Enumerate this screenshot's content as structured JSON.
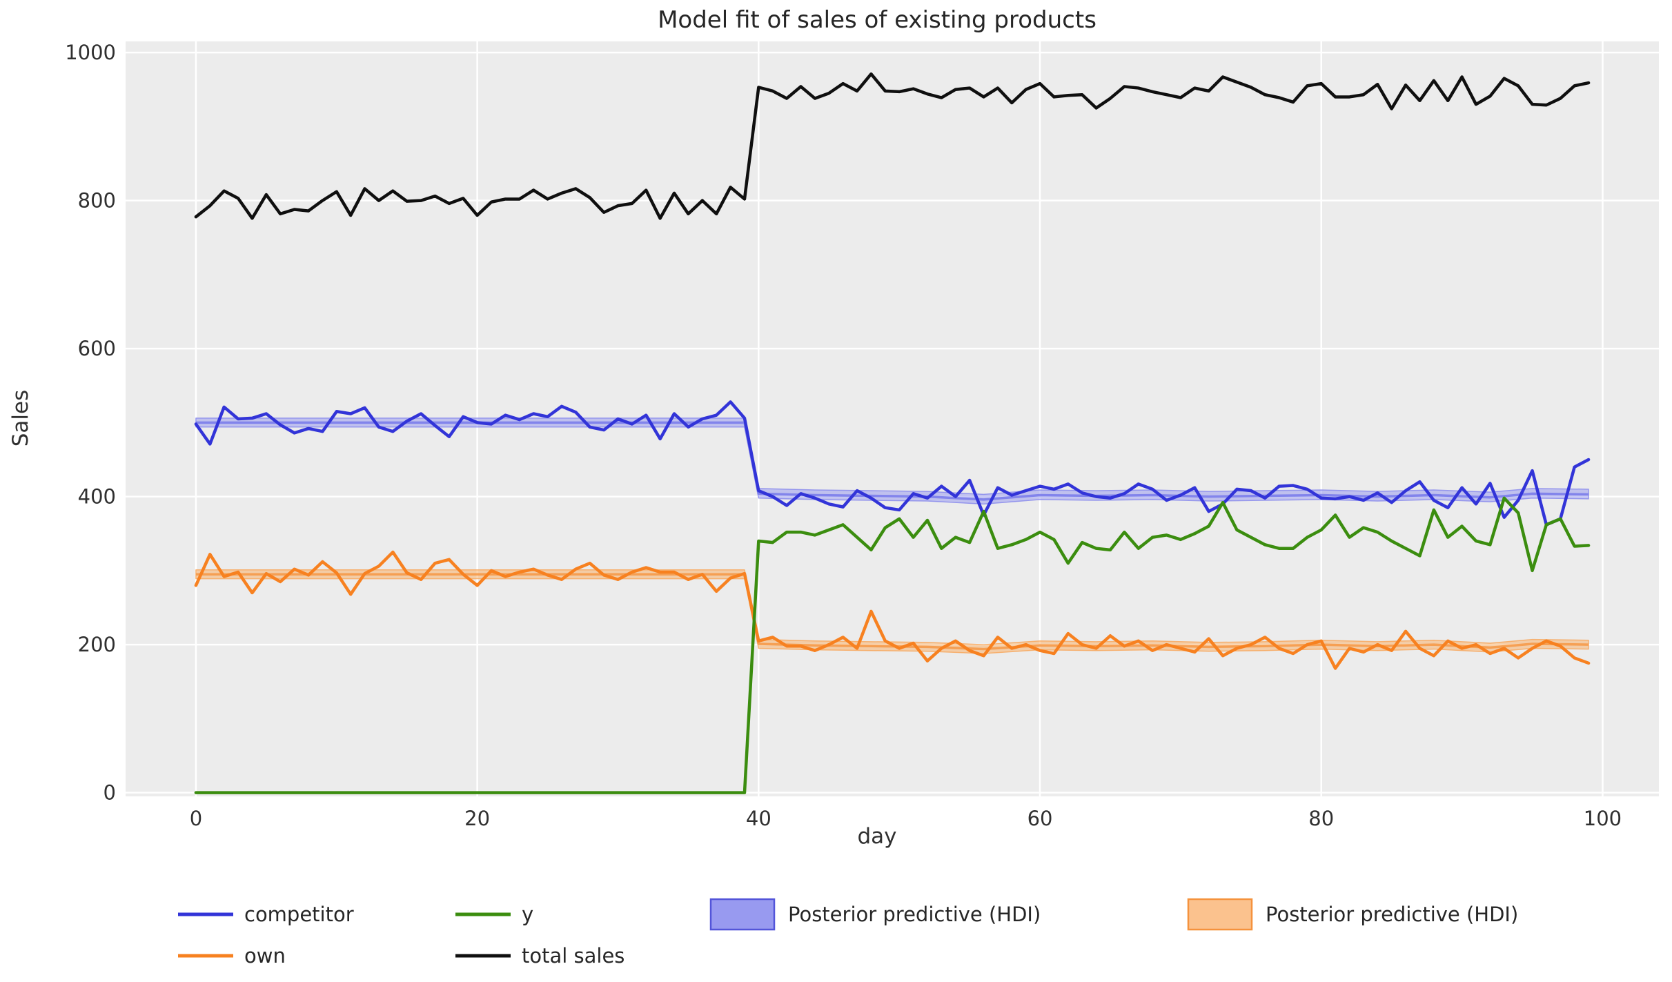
{
  "colors": {
    "competitor": "#3234d8",
    "own": "#f78120",
    "y": "#3b8d0f",
    "total_sales": "#0f0f0f",
    "hdi_blue_fill": "#9b9df0",
    "hdi_blue_mean": "#7b7dea",
    "hdi_blue_edge": "#8486ec",
    "hdi_orange_fill": "#f9b26e",
    "hdi_orange_mean": "#f59a4a",
    "hdi_orange_edge": "#f7a559",
    "patch_blue_fill": "#989af0",
    "patch_blue_edge": "#5355d9",
    "patch_orange_fill": "#fbc28e",
    "patch_orange_edge": "#f5923d",
    "plot_bg": "#ececec",
    "grid": "#ffffff",
    "text": "#303030"
  },
  "legend": {
    "entries": [
      {
        "label": "competitor",
        "swatch": "line",
        "color_key": "competitor"
      },
      {
        "label": "own",
        "swatch": "line",
        "color_key": "own"
      },
      {
        "label": "y",
        "swatch": "line",
        "color_key": "y"
      },
      {
        "label": "total sales",
        "swatch": "line",
        "color_key": "total_sales"
      },
      {
        "label": "Posterior predictive (HDI)",
        "swatch": "patch",
        "fill_key": "patch_blue_fill",
        "edge_key": "patch_blue_edge"
      },
      {
        "label": "Posterior predictive (HDI)",
        "swatch": "patch",
        "fill_key": "patch_orange_fill",
        "edge_key": "patch_orange_edge"
      }
    ]
  },
  "chart_data": {
    "type": "line",
    "title": "Model fit of sales of existing products",
    "xlabel": "day",
    "ylabel": "Sales",
    "xlim": [
      -5,
      104
    ],
    "ylim": [
      -5,
      1015
    ],
    "xticks": [
      0,
      20,
      40,
      60,
      80,
      100
    ],
    "yticks": [
      0,
      200,
      400,
      600,
      800,
      1000
    ],
    "grid": true,
    "legend_position": "below",
    "days": [
      0,
      1,
      2,
      3,
      4,
      5,
      6,
      7,
      8,
      9,
      10,
      11,
      12,
      13,
      14,
      15,
      16,
      17,
      18,
      19,
      20,
      21,
      22,
      23,
      24,
      25,
      26,
      27,
      28,
      29,
      30,
      31,
      32,
      33,
      34,
      35,
      36,
      37,
      38,
      39,
      40,
      41,
      42,
      43,
      44,
      45,
      46,
      47,
      48,
      49,
      50,
      51,
      52,
      53,
      54,
      55,
      56,
      57,
      58,
      59,
      60,
      61,
      62,
      63,
      64,
      65,
      66,
      67,
      68,
      69,
      70,
      71,
      72,
      73,
      74,
      75,
      76,
      77,
      78,
      79,
      80,
      81,
      82,
      83,
      84,
      85,
      86,
      87,
      88,
      89,
      90,
      91,
      92,
      93,
      94,
      95,
      96,
      97,
      98,
      99
    ],
    "series": [
      {
        "name": "competitor",
        "color_key": "competitor",
        "values": [
          498,
          471,
          521,
          505,
          506,
          512,
          497,
          486,
          492,
          488,
          515,
          512,
          520,
          494,
          488,
          502,
          512,
          496,
          481,
          508,
          500,
          498,
          510,
          504,
          512,
          508,
          522,
          514,
          494,
          490,
          505,
          498,
          510,
          478,
          512,
          494,
          505,
          510,
          528,
          506,
          408,
          400,
          388,
          404,
          398,
          390,
          386,
          408,
          398,
          385,
          382,
          404,
          398,
          414,
          400,
          422,
          375,
          412,
          402,
          408,
          414,
          410,
          417,
          405,
          400,
          398,
          404,
          417,
          410,
          395,
          402,
          412,
          380,
          390,
          410,
          408,
          398,
          414,
          415,
          410,
          398,
          397,
          400,
          395,
          405,
          392,
          408,
          420,
          395,
          385,
          412,
          390,
          418,
          372,
          395,
          435,
          362,
          370,
          440,
          450
        ]
      },
      {
        "name": "own",
        "color_key": "own",
        "values": [
          280,
          322,
          292,
          298,
          270,
          296,
          285,
          302,
          294,
          312,
          297,
          268,
          296,
          306,
          325,
          297,
          288,
          310,
          315,
          295,
          280,
          300,
          292,
          298,
          302,
          294,
          288,
          302,
          310,
          294,
          288,
          298,
          304,
          298,
          298,
          288,
          295,
          272,
          290,
          296,
          205,
          210,
          198,
          198,
          192,
          200,
          210,
          195,
          245,
          205,
          195,
          202,
          178,
          195,
          205,
          192,
          185,
          210,
          195,
          200,
          192,
          188,
          215,
          200,
          195,
          212,
          198,
          205,
          192,
          200,
          195,
          190,
          208,
          185,
          195,
          200,
          210,
          195,
          188,
          200,
          205,
          168,
          195,
          190,
          200,
          192,
          218,
          195,
          185,
          205,
          195,
          200,
          188,
          195,
          182,
          195,
          205,
          198,
          182,
          175
        ]
      },
      {
        "name": "y",
        "color_key": "y",
        "values": [
          0,
          0,
          0,
          0,
          0,
          0,
          0,
          0,
          0,
          0,
          0,
          0,
          0,
          0,
          0,
          0,
          0,
          0,
          0,
          0,
          0,
          0,
          0,
          0,
          0,
          0,
          0,
          0,
          0,
          0,
          0,
          0,
          0,
          0,
          0,
          0,
          0,
          0,
          0,
          0,
          340,
          338,
          352,
          352,
          348,
          355,
          362,
          345,
          328,
          358,
          370,
          345,
          368,
          330,
          345,
          338,
          380,
          330,
          335,
          342,
          352,
          342,
          310,
          338,
          330,
          328,
          352,
          330,
          345,
          348,
          342,
          350,
          360,
          392,
          355,
          345,
          335,
          330,
          330,
          345,
          355,
          375,
          345,
          358,
          352,
          340,
          330,
          320,
          382,
          345,
          360,
          340,
          335,
          398,
          378,
          300,
          362,
          370,
          333,
          334
        ]
      },
      {
        "name": "total sales",
        "color_key": "total_sales",
        "values": [
          778,
          793,
          813,
          803,
          776,
          808,
          782,
          788,
          786,
          800,
          812,
          780,
          816,
          800,
          813,
          799,
          800,
          806,
          796,
          803,
          780,
          798,
          802,
          802,
          814,
          802,
          810,
          816,
          804,
          784,
          793,
          796,
          814,
          776,
          810,
          782,
          800,
          782,
          818,
          802,
          953,
          948,
          938,
          954,
          938,
          945,
          958,
          948,
          971,
          948,
          947,
          951,
          944,
          939,
          950,
          952,
          940,
          952,
          932,
          950,
          958,
          940,
          942,
          943,
          925,
          938,
          954,
          952,
          947,
          943,
          939,
          952,
          948,
          967,
          960,
          953,
          943,
          939,
          933,
          955,
          958,
          940,
          940,
          943,
          957,
          924,
          956,
          935,
          962,
          935,
          967,
          930,
          941,
          965,
          955,
          930,
          929,
          938,
          955,
          959
        ]
      }
    ],
    "hdi_bands": [
      {
        "name": "Posterior predictive (HDI) competitor",
        "fill_key": "hdi_blue_fill",
        "edge_key": "hdi_blue_edge",
        "mean_key": "hdi_blue_mean",
        "x": [
          0,
          39,
          40,
          44,
          48,
          52,
          56,
          60,
          64,
          68,
          72,
          76,
          80,
          84,
          88,
          92,
          95,
          99
        ],
        "lower": [
          494,
          494,
          398,
          396,
          395,
          394,
          390,
          396,
          395,
          396,
          394,
          395,
          396,
          394,
          396,
          393,
          398,
          397
        ],
        "upper": [
          506,
          506,
          411,
          409,
          408,
          407,
          403,
          409,
          408,
          409,
          407,
          408,
          409,
          407,
          409,
          406,
          411,
          410
        ],
        "mean": [
          500,
          500,
          404,
          402,
          401,
          400,
          396,
          402,
          401,
          402,
          400,
          401,
          402,
          400,
          402,
          399,
          404,
          403
        ]
      },
      {
        "name": "Posterior predictive (HDI) own",
        "fill_key": "hdi_orange_fill",
        "edge_key": "hdi_orange_edge",
        "mean_key": "hdi_orange_mean",
        "x": [
          0,
          39,
          40,
          44,
          48,
          52,
          56,
          60,
          64,
          68,
          72,
          76,
          80,
          84,
          88,
          92,
          95,
          99
        ],
        "lower": [
          289,
          289,
          195,
          193,
          192,
          191,
          188,
          193,
          192,
          193,
          191,
          192,
          194,
          192,
          194,
          190,
          195,
          194
        ],
        "upper": [
          301,
          301,
          207,
          205,
          204,
          203,
          200,
          205,
          204,
          205,
          203,
          204,
          206,
          204,
          206,
          202,
          207,
          206
        ],
        "mean": [
          295,
          295,
          201,
          199,
          198,
          197,
          194,
          199,
          198,
          199,
          197,
          198,
          200,
          198,
          200,
          196,
          201,
          200
        ]
      }
    ]
  }
}
